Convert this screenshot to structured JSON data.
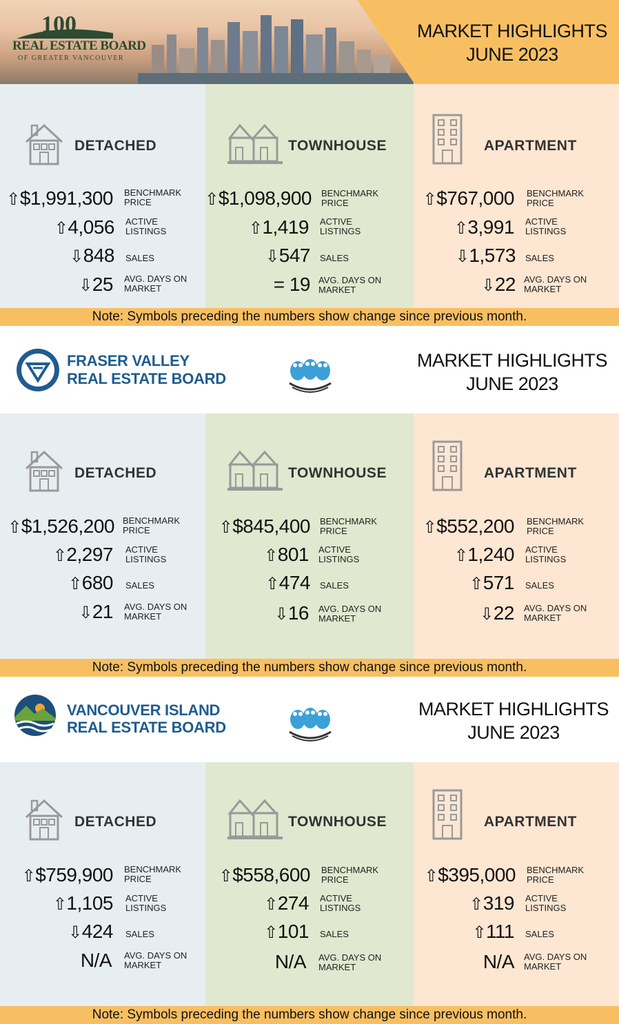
{
  "labels": {
    "benchmark": [
      "BENCHMARK",
      "PRICE"
    ],
    "active": [
      "ACTIVE",
      "LISTINGS"
    ],
    "sales": [
      "SALES"
    ],
    "days": [
      "AVG. DAYS ON",
      "MARKET"
    ]
  },
  "types": {
    "detached": "DETACHED",
    "townhouse": "TOWNHOUSE",
    "apartment": "APARTMENT"
  },
  "boards": [
    {
      "name_lines": [
        "REAL ESTATE BOARD",
        "OF GREATER VANCOUVER"
      ],
      "anniversary": "100",
      "title": [
        "MARKET HIGHLIGHTS",
        "JUNE 2023"
      ],
      "note": "Note: Symbols preceding the numbers show change since previous month.",
      "detached": {
        "benchmark": {
          "dir": "⇧",
          "value": "$1,991,300"
        },
        "active": {
          "dir": "⇧",
          "value": "4,056"
        },
        "sales": {
          "dir": "⇩",
          "value": "848"
        },
        "days": {
          "dir": "⇩",
          "value": "25"
        }
      },
      "townhouse": {
        "benchmark": {
          "dir": "⇧",
          "value": "$1,098,900"
        },
        "active": {
          "dir": "⇧",
          "value": "1,419"
        },
        "sales": {
          "dir": "⇩",
          "value": "547"
        },
        "days": {
          "dir": "=",
          "value": "19"
        }
      },
      "apartment": {
        "benchmark": {
          "dir": "⇧",
          "value": "$767,000"
        },
        "active": {
          "dir": "⇧",
          "value": "3,991"
        },
        "sales": {
          "dir": "⇩",
          "value": "1,573"
        },
        "days": {
          "dir": "⇩",
          "value": "22"
        }
      }
    },
    {
      "name_lines": [
        "FRASER VALLEY",
        "REAL ESTATE BOARD"
      ],
      "title": [
        "MARKET HIGHLIGHTS",
        "JUNE 2023"
      ],
      "note": "Note: Symbols preceding the numbers show change since previous month.",
      "detached": {
        "benchmark": {
          "dir": "⇧",
          "value": "$1,526,200"
        },
        "active": {
          "dir": "⇧",
          "value": "2,297"
        },
        "sales": {
          "dir": "⇧",
          "value": "680"
        },
        "days": {
          "dir": "⇩",
          "value": "21"
        }
      },
      "townhouse": {
        "benchmark": {
          "dir": "⇧",
          "value": "$845,400"
        },
        "active": {
          "dir": "⇧",
          "value": "801"
        },
        "sales": {
          "dir": "⇧",
          "value": "474"
        },
        "days": {
          "dir": "⇩",
          "value": "16"
        }
      },
      "apartment": {
        "benchmark": {
          "dir": "⇧",
          "value": "$552,200"
        },
        "active": {
          "dir": "⇧",
          "value": "1,240"
        },
        "sales": {
          "dir": "⇧",
          "value": "571"
        },
        "days": {
          "dir": "⇩",
          "value": "22"
        }
      }
    },
    {
      "name_lines": [
        "VANCOUVER ISLAND",
        "REAL ESTATE BOARD"
      ],
      "title": [
        "MARKET HIGHLIGHTS",
        "JUNE 2023"
      ],
      "note": "Note: Symbols preceding the numbers show change since previous month.",
      "detached": {
        "benchmark": {
          "dir": "⇧",
          "value": "$759,900"
        },
        "active": {
          "dir": "⇧",
          "value": "1,105"
        },
        "sales": {
          "dir": "⇩",
          "value": "424"
        },
        "days": {
          "dir": "",
          "value": "N/A"
        }
      },
      "townhouse": {
        "benchmark": {
          "dir": "⇧",
          "value": "$558,600"
        },
        "active": {
          "dir": "⇧",
          "value": "274"
        },
        "sales": {
          "dir": "⇧",
          "value": "101"
        },
        "days": {
          "dir": "",
          "value": "N/A"
        }
      },
      "apartment": {
        "benchmark": {
          "dir": "⇧",
          "value": "$395,000"
        },
        "active": {
          "dir": "⇧",
          "value": "319"
        },
        "sales": {
          "dir": "⇧",
          "value": "111"
        },
        "days": {
          "dir": "",
          "value": "N/A"
        }
      }
    }
  ],
  "colors": {
    "orange": "#f8bf62",
    "detached_bg": "#e6eef1",
    "townhouse_bg": "#e0e8cf",
    "apartment_bg": "#fde6d2",
    "fv_blue": "#1f5c8f"
  },
  "icons": {
    "detached": "house-icon",
    "townhouse": "townhouse-icon",
    "apartment": "apartment-building-icon",
    "owls": "owls-logo-icon"
  }
}
